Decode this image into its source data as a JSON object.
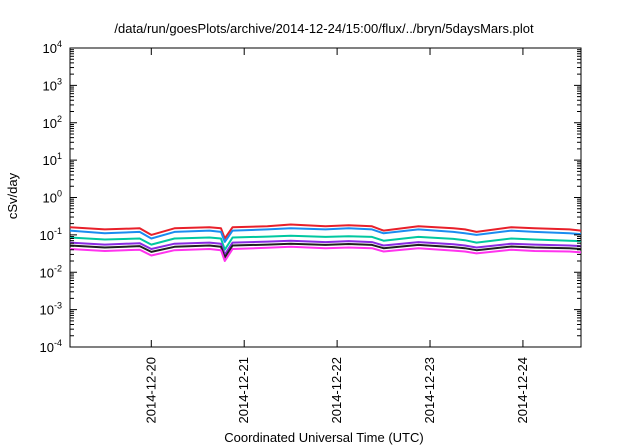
{
  "chart_data": {
    "type": "line",
    "title": "/data/run/goesPlots/archive/2014-12-24/15:00/flux/../bryn/5daysMars.plot",
    "xlabel": "Coordinated Universal Time (UTC)",
    "ylabel": "cSv/day",
    "y_scale": "log",
    "ylim": [
      0.0001,
      10000
    ],
    "xlim": [
      "2014-12-19T03:00",
      "2014-12-24T15:00"
    ],
    "x_ticks": [
      "2014-12-20",
      "2014-12-21",
      "2014-12-22",
      "2014-12-23",
      "2014-12-24"
    ],
    "y_ticks": [
      {
        "base": "10",
        "exp": "-4"
      },
      {
        "base": "10",
        "exp": "-3"
      },
      {
        "base": "10",
        "exp": "-2"
      },
      {
        "base": "10",
        "exp": "-1"
      },
      {
        "base": "10",
        "exp": "0"
      },
      {
        "base": "10",
        "exp": "1"
      },
      {
        "base": "10",
        "exp": "2"
      },
      {
        "base": "10",
        "exp": "3"
      },
      {
        "base": "10",
        "exp": "4"
      }
    ],
    "grid": false,
    "legend": "none",
    "x": [
      "2014-12-19T03:00",
      "2014-12-19T12:00",
      "2014-12-19T21:00",
      "2014-12-20T00:00",
      "2014-12-20T06:00",
      "2014-12-20T15:00",
      "2014-12-20T18:00",
      "2014-12-20T19:00",
      "2014-12-20T21:00",
      "2014-12-21T06:00",
      "2014-12-21T12:00",
      "2014-12-21T21:00",
      "2014-12-22T03:00",
      "2014-12-22T09:00",
      "2014-12-22T12:00",
      "2014-12-22T21:00",
      "2014-12-23T06:00",
      "2014-12-23T09:00",
      "2014-12-23T12:00",
      "2014-12-23T21:00",
      "2014-12-24T03:00",
      "2014-12-24T12:00",
      "2014-12-24T15:00"
    ],
    "series": [
      {
        "color": "#e8202a",
        "values": [
          0.16,
          0.14,
          0.15,
          0.1,
          0.15,
          0.16,
          0.15,
          0.08,
          0.16,
          0.17,
          0.19,
          0.17,
          0.18,
          0.17,
          0.13,
          0.17,
          0.15,
          0.14,
          0.12,
          0.16,
          0.15,
          0.14,
          0.13
        ]
      },
      {
        "color": "#1a8cf0",
        "values": [
          0.13,
          0.11,
          0.12,
          0.08,
          0.12,
          0.13,
          0.12,
          0.065,
          0.13,
          0.14,
          0.15,
          0.14,
          0.15,
          0.14,
          0.11,
          0.14,
          0.12,
          0.11,
          0.1,
          0.13,
          0.12,
          0.11,
          0.105
        ]
      },
      {
        "color": "#00c8a0",
        "values": [
          0.085,
          0.075,
          0.08,
          0.055,
          0.08,
          0.085,
          0.08,
          0.04,
          0.085,
          0.09,
          0.095,
          0.088,
          0.092,
          0.088,
          0.07,
          0.088,
          0.078,
          0.072,
          0.062,
          0.08,
          0.075,
          0.07,
          0.068
        ]
      },
      {
        "color": "#8a2be2",
        "values": [
          0.062,
          0.055,
          0.06,
          0.042,
          0.058,
          0.062,
          0.058,
          0.03,
          0.062,
          0.066,
          0.07,
          0.064,
          0.068,
          0.064,
          0.052,
          0.064,
          0.056,
          0.052,
          0.046,
          0.058,
          0.055,
          0.052,
          0.05
        ]
      },
      {
        "color": "#202020",
        "values": [
          0.052,
          0.046,
          0.05,
          0.035,
          0.048,
          0.052,
          0.048,
          0.025,
          0.052,
          0.055,
          0.058,
          0.054,
          0.057,
          0.054,
          0.044,
          0.054,
          0.047,
          0.044,
          0.039,
          0.049,
          0.046,
          0.044,
          0.042
        ]
      },
      {
        "color": "#ff33ee",
        "values": [
          0.042,
          0.037,
          0.04,
          0.028,
          0.039,
          0.042,
          0.039,
          0.02,
          0.042,
          0.045,
          0.048,
          0.044,
          0.046,
          0.044,
          0.036,
          0.044,
          0.038,
          0.036,
          0.032,
          0.04,
          0.037,
          0.036,
          0.034
        ]
      }
    ]
  }
}
